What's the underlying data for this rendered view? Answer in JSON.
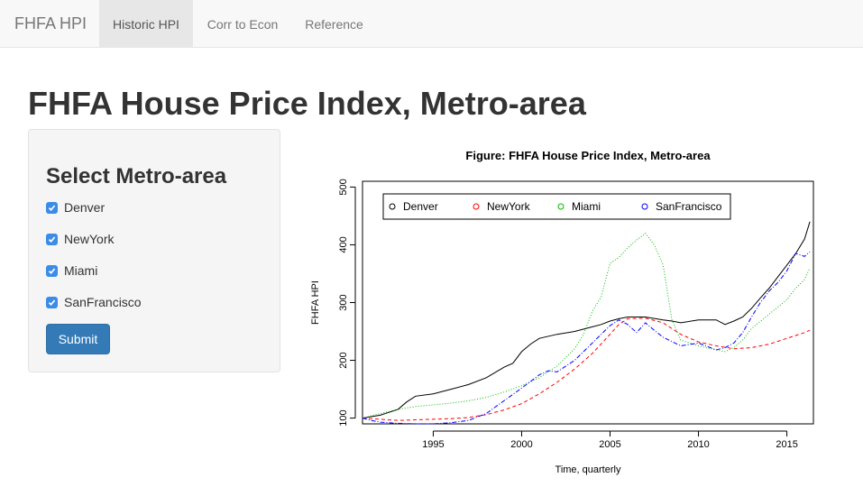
{
  "navbar": {
    "brand": "FHFA HPI",
    "tabs": [
      {
        "label": "Historic HPI",
        "active": true
      },
      {
        "label": "Corr to Econ",
        "active": false
      },
      {
        "label": "Reference",
        "active": false
      }
    ]
  },
  "page_title": "FHFA House Price Index, Metro-area",
  "sidebar": {
    "heading": "Select Metro-area",
    "checkboxes": [
      {
        "label": "Denver",
        "checked": true
      },
      {
        "label": "NewYork",
        "checked": true
      },
      {
        "label": "Miami",
        "checked": true
      },
      {
        "label": "SanFrancisco",
        "checked": true
      }
    ],
    "submit_label": "Submit",
    "checkbox_color": "#3a8ce8",
    "button_color": "#337ab7"
  },
  "chart_data": {
    "type": "line",
    "title": "Figure: FHFA House Price Index, Metro-area",
    "xlabel": "Time, quarterly",
    "ylabel": "FHFA HPI",
    "xlim": [
      1991,
      2016.5
    ],
    "ylim": [
      90,
      510
    ],
    "xticks": [
      1995,
      2000,
      2005,
      2010,
      2015
    ],
    "yticks": [
      100,
      200,
      300,
      400,
      500
    ],
    "grid": false,
    "legend": {
      "position": "top-left",
      "orientation": "horizontal"
    },
    "series": [
      {
        "name": "Denver",
        "color": "#000000",
        "style": "solid",
        "points": [
          [
            1991,
            100
          ],
          [
            1992,
            105
          ],
          [
            1992.5,
            110
          ],
          [
            1993,
            115
          ],
          [
            1993.5,
            128
          ],
          [
            1994,
            138
          ],
          [
            1995,
            142
          ],
          [
            1996,
            150
          ],
          [
            1997,
            158
          ],
          [
            1998,
            170
          ],
          [
            1999,
            188
          ],
          [
            1999.5,
            195
          ],
          [
            2000,
            215
          ],
          [
            2000.5,
            228
          ],
          [
            2001,
            238
          ],
          [
            2002,
            245
          ],
          [
            2003,
            250
          ],
          [
            2004,
            258
          ],
          [
            2004.5,
            262
          ],
          [
            2005,
            268
          ],
          [
            2005.5,
            272
          ],
          [
            2006,
            275
          ],
          [
            2007,
            275
          ],
          [
            2008,
            270
          ],
          [
            2008.5,
            268
          ],
          [
            2009,
            265
          ],
          [
            2010,
            270
          ],
          [
            2011,
            270
          ],
          [
            2011.5,
            262
          ],
          [
            2012,
            268
          ],
          [
            2012.5,
            275
          ],
          [
            2013,
            290
          ],
          [
            2013.5,
            308
          ],
          [
            2014,
            325
          ],
          [
            2014.5,
            345
          ],
          [
            2015,
            365
          ],
          [
            2015.5,
            385
          ],
          [
            2016,
            410
          ],
          [
            2016.3,
            440
          ]
        ]
      },
      {
        "name": "NewYork",
        "color": "#ff0000",
        "style": "dashed",
        "points": [
          [
            1991,
            100
          ],
          [
            1992,
            98
          ],
          [
            1993,
            96
          ],
          [
            1994,
            97
          ],
          [
            1995,
            98
          ],
          [
            1996,
            99
          ],
          [
            1997,
            101
          ],
          [
            1998,
            106
          ],
          [
            1999,
            114
          ],
          [
            2000,
            125
          ],
          [
            2001,
            142
          ],
          [
            2002,
            162
          ],
          [
            2003,
            185
          ],
          [
            2004,
            212
          ],
          [
            2005,
            245
          ],
          [
            2005.5,
            262
          ],
          [
            2006,
            272
          ],
          [
            2007,
            273
          ],
          [
            2008,
            265
          ],
          [
            2009,
            245
          ],
          [
            2010,
            232
          ],
          [
            2011,
            225
          ],
          [
            2012,
            220
          ],
          [
            2013,
            222
          ],
          [
            2014,
            228
          ],
          [
            2015,
            238
          ],
          [
            2016,
            248
          ],
          [
            2016.3,
            252
          ]
        ]
      },
      {
        "name": "Miami",
        "color": "#00bb00",
        "style": "dotted",
        "points": [
          [
            1991,
            100
          ],
          [
            1992,
            108
          ],
          [
            1993,
            115
          ],
          [
            1994,
            120
          ],
          [
            1995,
            123
          ],
          [
            1996,
            126
          ],
          [
            1997,
            130
          ],
          [
            1998,
            136
          ],
          [
            1999,
            145
          ],
          [
            2000,
            156
          ],
          [
            2001,
            170
          ],
          [
            2002,
            190
          ],
          [
            2003,
            220
          ],
          [
            2003.5,
            245
          ],
          [
            2004,
            285
          ],
          [
            2004.5,
            310
          ],
          [
            2005,
            368
          ],
          [
            2005.5,
            378
          ],
          [
            2006,
            395
          ],
          [
            2006.5,
            408
          ],
          [
            2007,
            420
          ],
          [
            2007.5,
            400
          ],
          [
            2008,
            365
          ],
          [
            2008.5,
            270
          ],
          [
            2009,
            235
          ],
          [
            2010,
            225
          ],
          [
            2011,
            218
          ],
          [
            2011.5,
            215
          ],
          [
            2012,
            222
          ],
          [
            2012.5,
            235
          ],
          [
            2013,
            255
          ],
          [
            2014,
            280
          ],
          [
            2015,
            305
          ],
          [
            2015.5,
            325
          ],
          [
            2016,
            340
          ],
          [
            2016.3,
            360
          ]
        ]
      },
      {
        "name": "SanFrancisco",
        "color": "#0000ff",
        "style": "dashdot",
        "points": [
          [
            1991,
            100
          ],
          [
            1991.5,
            96
          ],
          [
            1992,
            93
          ],
          [
            1993,
            91
          ],
          [
            1994,
            90
          ],
          [
            1995,
            90
          ],
          [
            1996,
            92
          ],
          [
            1997,
            96
          ],
          [
            1998,
            108
          ],
          [
            1999,
            130
          ],
          [
            2000,
            152
          ],
          [
            2001,
            175
          ],
          [
            2001.5,
            182
          ],
          [
            2002,
            180
          ],
          [
            2003,
            200
          ],
          [
            2004,
            230
          ],
          [
            2005,
            260
          ],
          [
            2005.5,
            270
          ],
          [
            2006,
            262
          ],
          [
            2006.5,
            248
          ],
          [
            2007,
            265
          ],
          [
            2007.5,
            252
          ],
          [
            2008,
            240
          ],
          [
            2009,
            225
          ],
          [
            2010,
            230
          ],
          [
            2011,
            218
          ],
          [
            2011.5,
            222
          ],
          [
            2012,
            230
          ],
          [
            2012.5,
            248
          ],
          [
            2013,
            275
          ],
          [
            2013.5,
            300
          ],
          [
            2014,
            320
          ],
          [
            2014.5,
            335
          ],
          [
            2015,
            355
          ],
          [
            2015.5,
            385
          ],
          [
            2016,
            380
          ],
          [
            2016.3,
            388
          ]
        ]
      }
    ]
  }
}
